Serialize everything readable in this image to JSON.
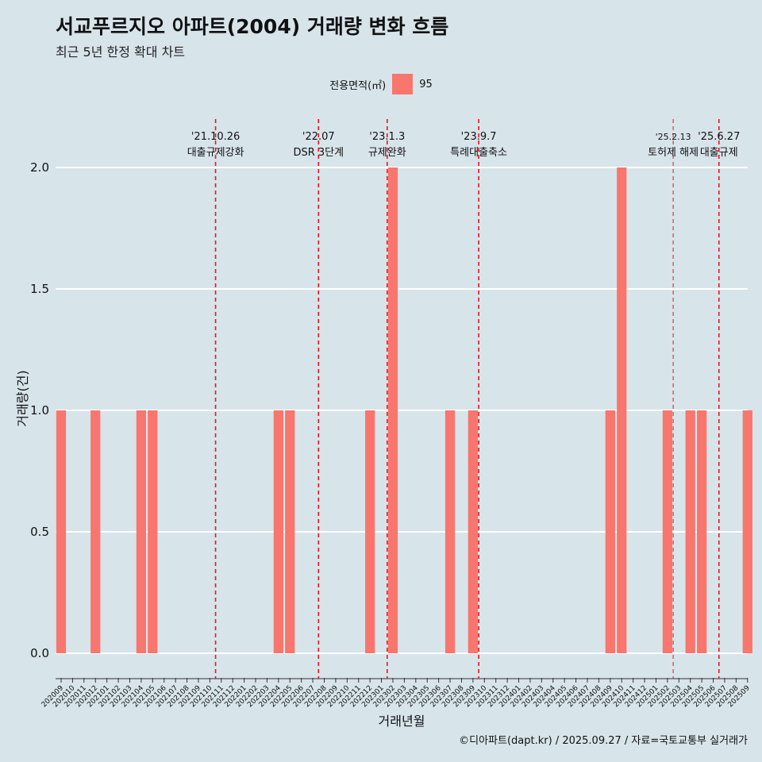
{
  "title": "서교푸르지오 아파트(2004) 거래량 변화 흐름",
  "subtitle": "최근 5년 한정 확대 차트",
  "legend": {
    "title": "전용면적(㎡)",
    "label": "95",
    "color": "#f8766d"
  },
  "caption": "©디아파트(dapt.kr) / 2025.09.27 / 자료=국토교통부 실거래가",
  "chart_data": {
    "type": "bar",
    "xlabel": "거래년월",
    "ylabel": "거래량(건)",
    "ylim": [
      0,
      2
    ],
    "yticks": [
      "0.0",
      "0.5",
      "1.0",
      "1.5",
      "2.0"
    ],
    "categories": [
      "202009",
      "202010",
      "202011",
      "202012",
      "202101",
      "202102",
      "202103",
      "202104",
      "202105",
      "202106",
      "202107",
      "202108",
      "202109",
      "202110",
      "202111",
      "202112",
      "202201",
      "202202",
      "202203",
      "202204",
      "202205",
      "202206",
      "202207",
      "202208",
      "202209",
      "202210",
      "202211",
      "202212",
      "202301",
      "202302",
      "202303",
      "202304",
      "202305",
      "202306",
      "202307",
      "202308",
      "202309",
      "202310",
      "202311",
      "202312",
      "202401",
      "202402",
      "202403",
      "202404",
      "202405",
      "202406",
      "202407",
      "202408",
      "202409",
      "202410",
      "202411",
      "202412",
      "202501",
      "202502",
      "202503",
      "202504",
      "202505",
      "202506",
      "202507",
      "202508",
      "202509"
    ],
    "series": [
      {
        "name": "95",
        "values": [
          1,
          0,
          0,
          1,
          0,
          0,
          0,
          1,
          1,
          0,
          0,
          0,
          0,
          0,
          0,
          0,
          0,
          0,
          0,
          1,
          1,
          0,
          0,
          0,
          0,
          0,
          0,
          1,
          0,
          2,
          0,
          0,
          0,
          0,
          1,
          0,
          1,
          0,
          0,
          0,
          0,
          0,
          0,
          0,
          0,
          0,
          0,
          0,
          1,
          2,
          0,
          0,
          0,
          1,
          0,
          1,
          1,
          0,
          0,
          0,
          1
        ]
      }
    ],
    "events": [
      {
        "date": "'21.10.26",
        "label": "대출규제강화",
        "after": "202110",
        "thick": true
      },
      {
        "date": "'22.07",
        "label": "DSR 3단계",
        "after": "202207",
        "thick": true
      },
      {
        "date": "'23.1.3",
        "label": "규제완화",
        "after": "202301",
        "thick": true
      },
      {
        "date": "'23.9.7",
        "label": "특례대출축소",
        "after": "202309",
        "thick": true
      },
      {
        "date": "'25.2.13",
        "label": "토허제 해제",
        "after": "202502",
        "thick": false
      },
      {
        "date": "'25.6.27",
        "label": "대출규제",
        "after": "202506",
        "thick": true
      }
    ]
  }
}
